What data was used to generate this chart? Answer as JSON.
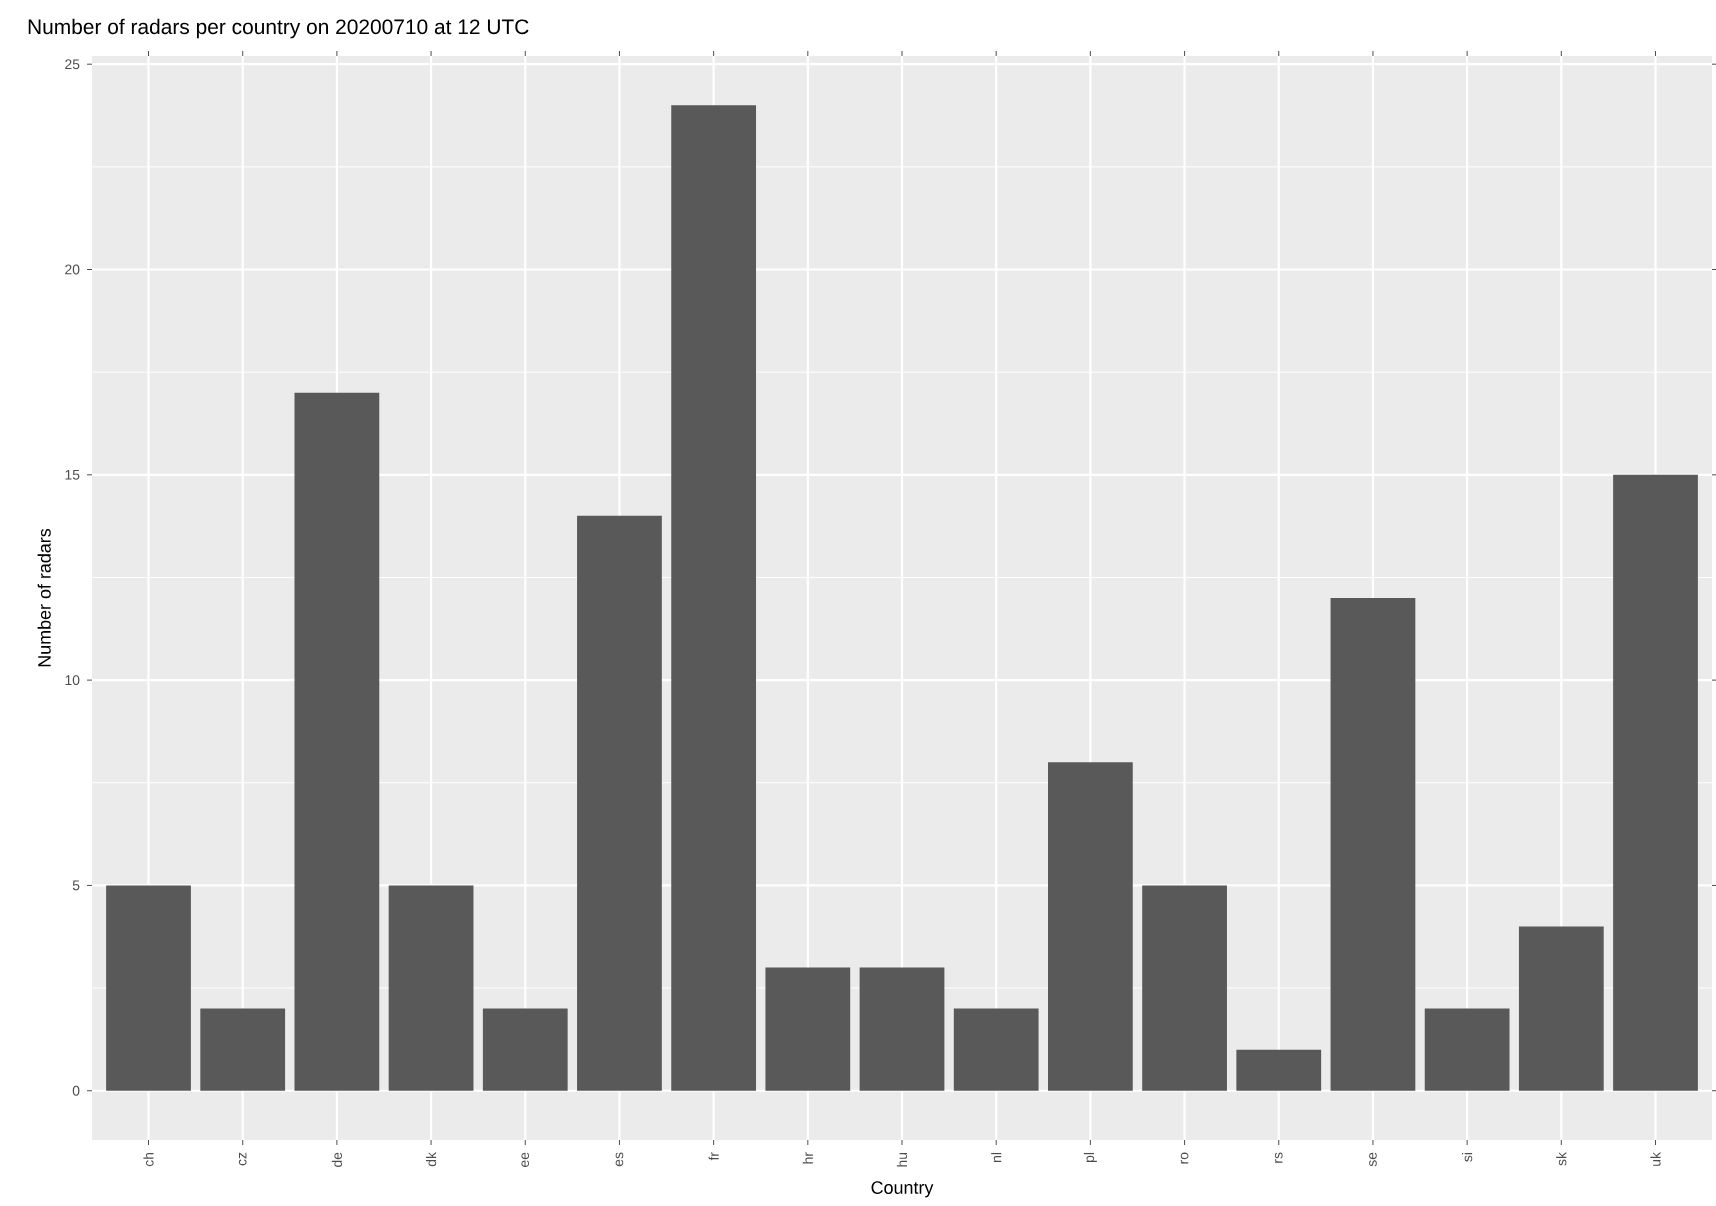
{
  "chart_data": {
    "type": "bar",
    "title": "Number of radars per country on 20200710 at 12 UTC",
    "xlabel": "Country",
    "ylabel": "Number of radars",
    "categories": [
      "ch",
      "cz",
      "de",
      "dk",
      "ee",
      "es",
      "fr",
      "hr",
      "hu",
      "nl",
      "pl",
      "ro",
      "rs",
      "se",
      "si",
      "sk",
      "uk"
    ],
    "values": [
      5,
      2,
      17,
      5,
      2,
      14,
      24,
      3,
      3,
      2,
      8,
      5,
      1,
      12,
      2,
      4,
      15
    ],
    "color": "#595959",
    "ylim": [
      -1.2,
      25.2
    ],
    "yticks": [
      0,
      5,
      10,
      15,
      20,
      25
    ],
    "grid": true
  }
}
